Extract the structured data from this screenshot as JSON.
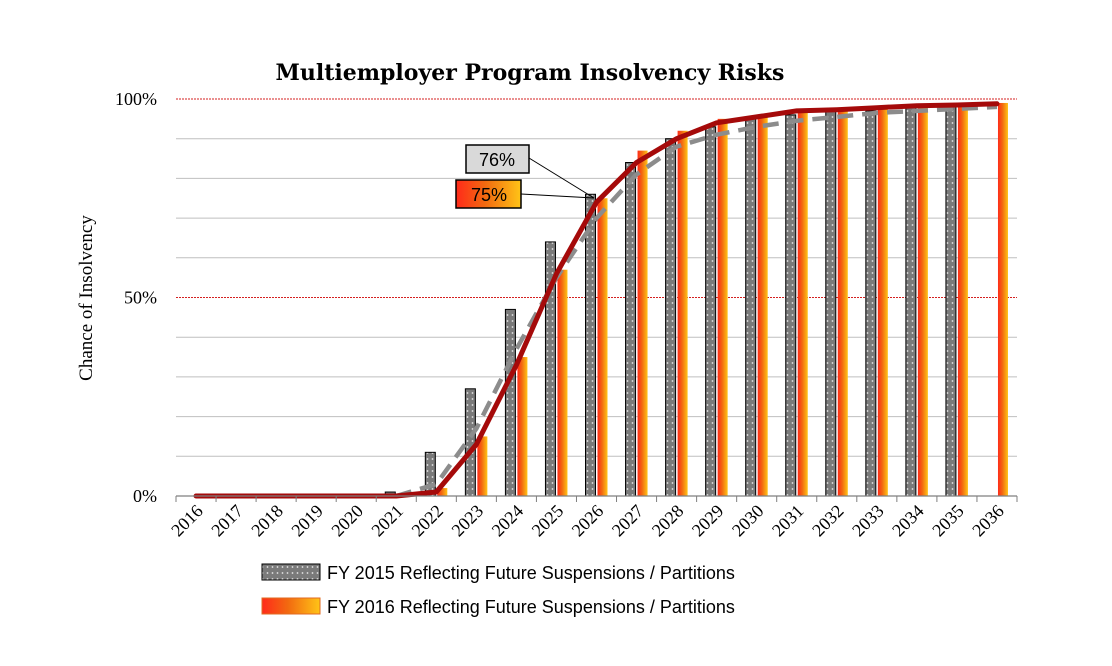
{
  "chart_data": {
    "type": "bar",
    "title": "Multiemployer Program Insolvency Risks",
    "ylabel": "Chance of Insolvency",
    "xlabel": "",
    "ylim": [
      0,
      100
    ],
    "yticks": [
      "0%",
      "50%",
      "100%"
    ],
    "categories": [
      "2016",
      "2017",
      "2018",
      "2019",
      "2020",
      "2021",
      "2022",
      "2023",
      "2024",
      "2025",
      "2026",
      "2027",
      "2028",
      "2029",
      "2030",
      "2031",
      "2032",
      "2033",
      "2034",
      "2035",
      "2036"
    ],
    "series": [
      {
        "name": "FY 2015 Reflecting Future Suspensions / Partitions",
        "kind": "bar",
        "style": "gray-dotted",
        "color": "#7f7f7f",
        "values": [
          0,
          0,
          0,
          0,
          0,
          1,
          11,
          27,
          47,
          64,
          76,
          84,
          90,
          93,
          95,
          96,
          97,
          97,
          98,
          98,
          null
        ]
      },
      {
        "name": "FY 2016 Reflecting Future Suspensions / Partitions",
        "kind": "bar",
        "style": "red-orange-gradient",
        "color": "#e8411b",
        "values": [
          0,
          0,
          0,
          0,
          0,
          0,
          2,
          15,
          35,
          57,
          75,
          87,
          92,
          95,
          96,
          97,
          97,
          98,
          98,
          98,
          99
        ]
      },
      {
        "kind": "line",
        "style": "solid",
        "color": "#a50a0a",
        "values": [
          0,
          0,
          0,
          0,
          0,
          0,
          1,
          13,
          33,
          56,
          74,
          84,
          90,
          94,
          95.5,
          97,
          97.3,
          97.8,
          98.3,
          98.5,
          98.8
        ]
      },
      {
        "kind": "line",
        "style": "dashed",
        "color": "#8c8c8c",
        "values": [
          0,
          0,
          0,
          0,
          0,
          0,
          3,
          17,
          37,
          55,
          70,
          81,
          88,
          91,
          93,
          94.5,
          95.5,
          96.5,
          97,
          97.5,
          98
        ]
      }
    ],
    "callouts": [
      {
        "text": "76%",
        "year": "2026",
        "series": 0
      },
      {
        "text": "75%",
        "year": "2026",
        "series": 1
      }
    ],
    "legend_position": "bottom",
    "reference_lines": [
      50,
      100
    ]
  }
}
